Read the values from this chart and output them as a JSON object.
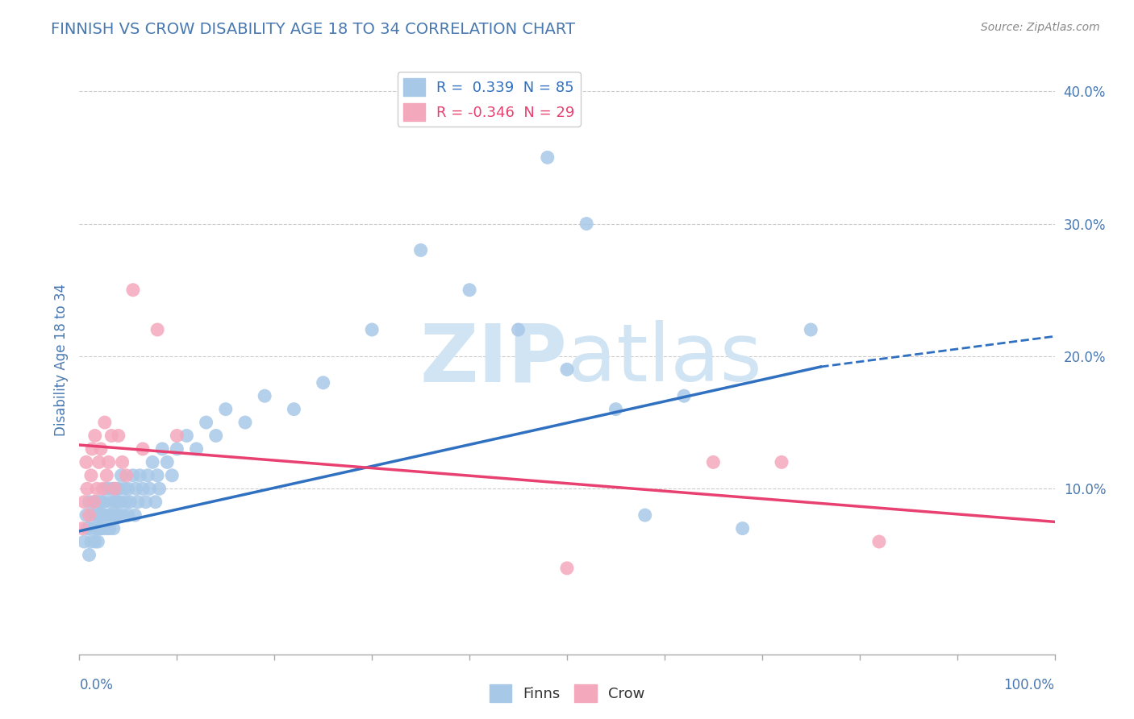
{
  "title": "FINNISH VS CROW DISABILITY AGE 18 TO 34 CORRELATION CHART",
  "source": "Source: ZipAtlas.com",
  "ylabel": "Disability Age 18 to 34",
  "xlim": [
    0,
    1.0
  ],
  "ylim": [
    -0.025,
    0.42
  ],
  "legend_r_blue": "R =  0.339  N = 85",
  "legend_r_pink": "R = -0.346  N = 29",
  "legend_label_blue": "Finns",
  "legend_label_pink": "Crow",
  "blue_color": "#a8c8e8",
  "pink_color": "#f4a8bc",
  "blue_line_color": "#3070c0",
  "pink_line_color": "#e84070",
  "watermark_color": "#d0e4f4",
  "background_color": "#ffffff",
  "grid_color": "#cccccc",
  "title_color": "#4878b0",
  "axis_label_color": "#4878b0",
  "tick_color": "#4878b0",
  "blue_line_start_x": 0.0,
  "blue_line_start_y": 0.068,
  "blue_line_solid_end_x": 0.76,
  "blue_line_solid_end_y": 0.192,
  "blue_line_dash_end_x": 1.0,
  "blue_line_dash_end_y": 0.215,
  "pink_line_start_x": 0.0,
  "pink_line_start_y": 0.133,
  "pink_line_end_x": 1.0,
  "pink_line_end_y": 0.075,
  "finns_x": [
    0.005,
    0.007,
    0.008,
    0.01,
    0.01,
    0.01,
    0.012,
    0.013,
    0.015,
    0.015,
    0.016,
    0.017,
    0.018,
    0.018,
    0.019,
    0.02,
    0.02,
    0.021,
    0.022,
    0.022,
    0.023,
    0.024,
    0.025,
    0.026,
    0.027,
    0.028,
    0.03,
    0.03,
    0.031,
    0.032,
    0.033,
    0.034,
    0.035,
    0.036,
    0.037,
    0.038,
    0.039,
    0.04,
    0.04,
    0.042,
    0.043,
    0.045,
    0.046,
    0.048,
    0.05,
    0.05,
    0.052,
    0.055,
    0.057,
    0.058,
    0.06,
    0.062,
    0.065,
    0.068,
    0.07,
    0.072,
    0.075,
    0.078,
    0.08,
    0.082,
    0.085,
    0.09,
    0.095,
    0.1,
    0.11,
    0.12,
    0.13,
    0.14,
    0.15,
    0.17,
    0.19,
    0.22,
    0.25,
    0.3,
    0.35,
    0.4,
    0.45,
    0.5,
    0.55,
    0.62,
    0.48,
    0.52,
    0.58,
    0.68,
    0.75
  ],
  "finns_y": [
    0.06,
    0.08,
    0.07,
    0.05,
    0.07,
    0.09,
    0.06,
    0.08,
    0.07,
    0.09,
    0.06,
    0.08,
    0.07,
    0.09,
    0.06,
    0.07,
    0.09,
    0.08,
    0.07,
    0.09,
    0.08,
    0.07,
    0.09,
    0.08,
    0.1,
    0.07,
    0.08,
    0.1,
    0.07,
    0.09,
    0.08,
    0.1,
    0.07,
    0.09,
    0.08,
    0.1,
    0.09,
    0.08,
    0.1,
    0.09,
    0.11,
    0.08,
    0.1,
    0.09,
    0.08,
    0.1,
    0.09,
    0.11,
    0.08,
    0.1,
    0.09,
    0.11,
    0.1,
    0.09,
    0.11,
    0.1,
    0.12,
    0.09,
    0.11,
    0.1,
    0.13,
    0.12,
    0.11,
    0.13,
    0.14,
    0.13,
    0.15,
    0.14,
    0.16,
    0.15,
    0.17,
    0.16,
    0.18,
    0.22,
    0.28,
    0.25,
    0.22,
    0.19,
    0.16,
    0.17,
    0.35,
    0.3,
    0.08,
    0.07,
    0.22
  ],
  "crow_x": [
    0.003,
    0.005,
    0.007,
    0.008,
    0.01,
    0.012,
    0.013,
    0.015,
    0.016,
    0.018,
    0.02,
    0.022,
    0.024,
    0.026,
    0.028,
    0.03,
    0.033,
    0.036,
    0.04,
    0.044,
    0.048,
    0.055,
    0.065,
    0.08,
    0.1,
    0.5,
    0.65,
    0.72,
    0.82
  ],
  "crow_y": [
    0.07,
    0.09,
    0.12,
    0.1,
    0.08,
    0.11,
    0.13,
    0.09,
    0.14,
    0.1,
    0.12,
    0.13,
    0.1,
    0.15,
    0.11,
    0.12,
    0.14,
    0.1,
    0.14,
    0.12,
    0.11,
    0.25,
    0.13,
    0.22,
    0.14,
    0.04,
    0.12,
    0.12,
    0.06
  ]
}
